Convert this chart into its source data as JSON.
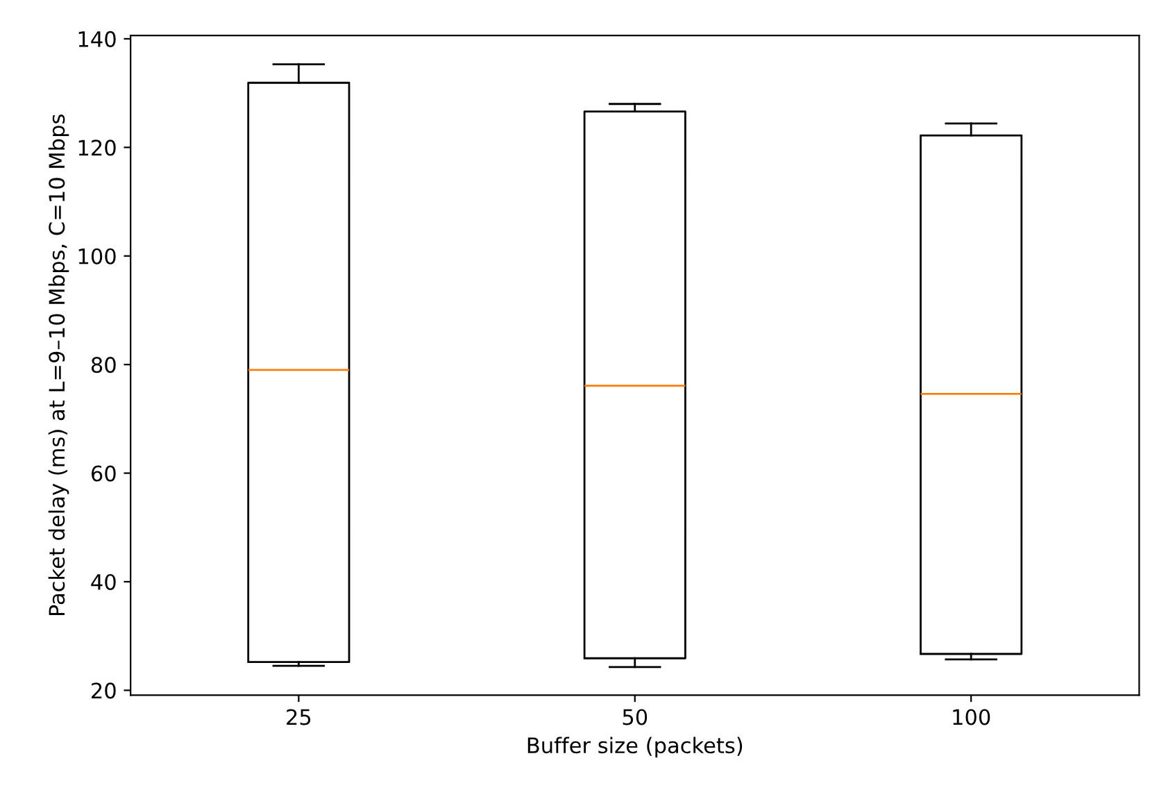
{
  "chart_data": {
    "type": "box",
    "xlabel": "Buffer size (packets)",
    "ylabel": "Packet delay (ms) at L=9–10 Mbps, C=10 Mbps",
    "categories": [
      "25",
      "50",
      "100"
    ],
    "boxes": [
      {
        "low": 24.5,
        "q1": 25.2,
        "median": 79.0,
        "q3": 131.9,
        "high": 135.3
      },
      {
        "low": 24.3,
        "q1": 25.9,
        "median": 76.1,
        "q3": 126.6,
        "high": 128.0
      },
      {
        "low": 25.7,
        "q1": 26.7,
        "median": 74.6,
        "q3": 122.2,
        "high": 124.4
      }
    ],
    "color": "#000000",
    "ylim": [
      19.1,
      140.6
    ],
    "yticks": [
      20,
      40,
      60,
      80,
      100,
      120,
      140
    ],
    "grid": false,
    "legend": false
  }
}
